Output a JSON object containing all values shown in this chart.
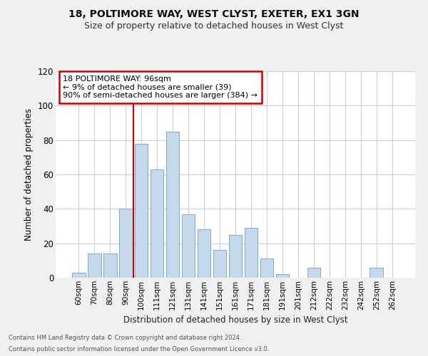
{
  "title1": "18, POLTIMORE WAY, WEST CLYST, EXETER, EX1 3GN",
  "title2": "Size of property relative to detached houses in West Clyst",
  "xlabel": "Distribution of detached houses by size in West Clyst",
  "ylabel": "Number of detached properties",
  "categories": [
    "60sqm",
    "70sqm",
    "80sqm",
    "90sqm",
    "100sqm",
    "111sqm",
    "121sqm",
    "131sqm",
    "141sqm",
    "151sqm",
    "161sqm",
    "171sqm",
    "181sqm",
    "191sqm",
    "201sqm",
    "212sqm",
    "222sqm",
    "232sqm",
    "242sqm",
    "252sqm",
    "262sqm"
  ],
  "values": [
    3,
    14,
    14,
    40,
    78,
    63,
    85,
    37,
    28,
    16,
    25,
    29,
    11,
    2,
    0,
    6,
    0,
    0,
    0,
    6,
    0
  ],
  "bar_color": "#c6d9ec",
  "bar_edge_color": "#7aaecc",
  "annotation_text1": "18 POLTIMORE WAY: 96sqm",
  "annotation_text2": "← 9% of detached houses are smaller (39)",
  "annotation_text3": "90% of semi-detached houses are larger (384) →",
  "red_line_x": 3.5,
  "ylim": [
    0,
    120
  ],
  "yticks": [
    0,
    20,
    40,
    60,
    80,
    100,
    120
  ],
  "footnote1": "Contains HM Land Registry data © Crown copyright and database right 2024.",
  "footnote2": "Contains public sector information licensed under the Open Government Licence v3.0.",
  "background_color": "#f0f0f0",
  "plot_background": "#ffffff",
  "grid_color": "#c8d0dc",
  "annotation_box_color": "#ffffff",
  "annotation_box_edge": "#cc0000",
  "red_line_color": "#cc0000",
  "title1_fontsize": 10,
  "title2_fontsize": 9
}
